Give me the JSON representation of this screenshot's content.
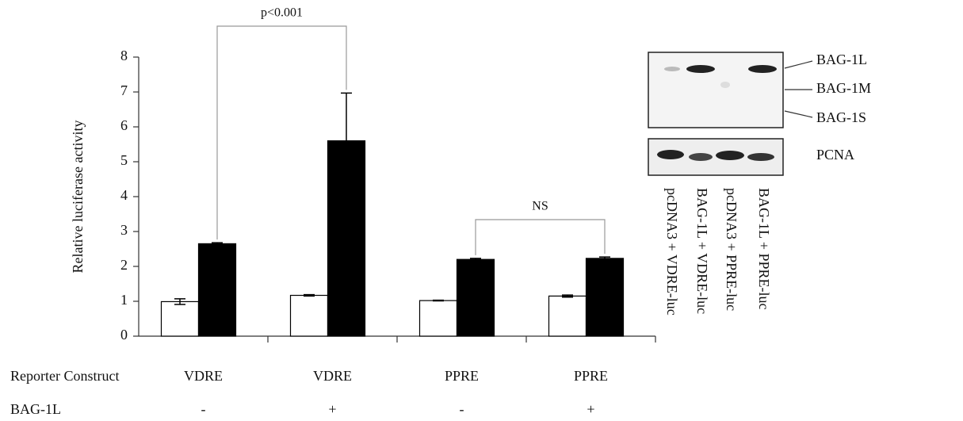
{
  "chart_data": {
    "type": "bar",
    "ylabel": "Relative luciferase activity",
    "categories": [
      "VDRE",
      "VDRE",
      "PPRE",
      "PPRE"
    ],
    "category_row_label": "Reporter Construct",
    "second_row": {
      "label": "BAG-1L",
      "values": [
        "-",
        "+",
        "-",
        "+"
      ]
    },
    "series": [
      {
        "color": "#ffffff",
        "values": [
          0.99,
          1.17,
          1.02,
          1.15
        ],
        "errors": [
          0.08,
          0.02,
          0.01,
          0.03
        ]
      },
      {
        "color": "#000000",
        "values": [
          2.65,
          5.6,
          2.2,
          2.23
        ],
        "errors": [
          0.03,
          1.37,
          0.03,
          0.04
        ]
      }
    ],
    "ylim": [
      0,
      8
    ],
    "yticks": [
      0,
      1,
      2,
      3,
      4,
      5,
      6,
      7,
      8
    ],
    "annotations": [
      "p<0.001",
      "NS"
    ]
  },
  "blot": {
    "bands": [
      "BAG-1L",
      "BAG-1M",
      "BAG-1S"
    ],
    "loading_control": "PCNA",
    "lanes": [
      "pcDNA3 + VDRE-luc",
      "BAG-1L + VDRE-luc",
      "pcDNA3 + PPRE-luc",
      "BAG-1L + PPRE-luc"
    ]
  }
}
